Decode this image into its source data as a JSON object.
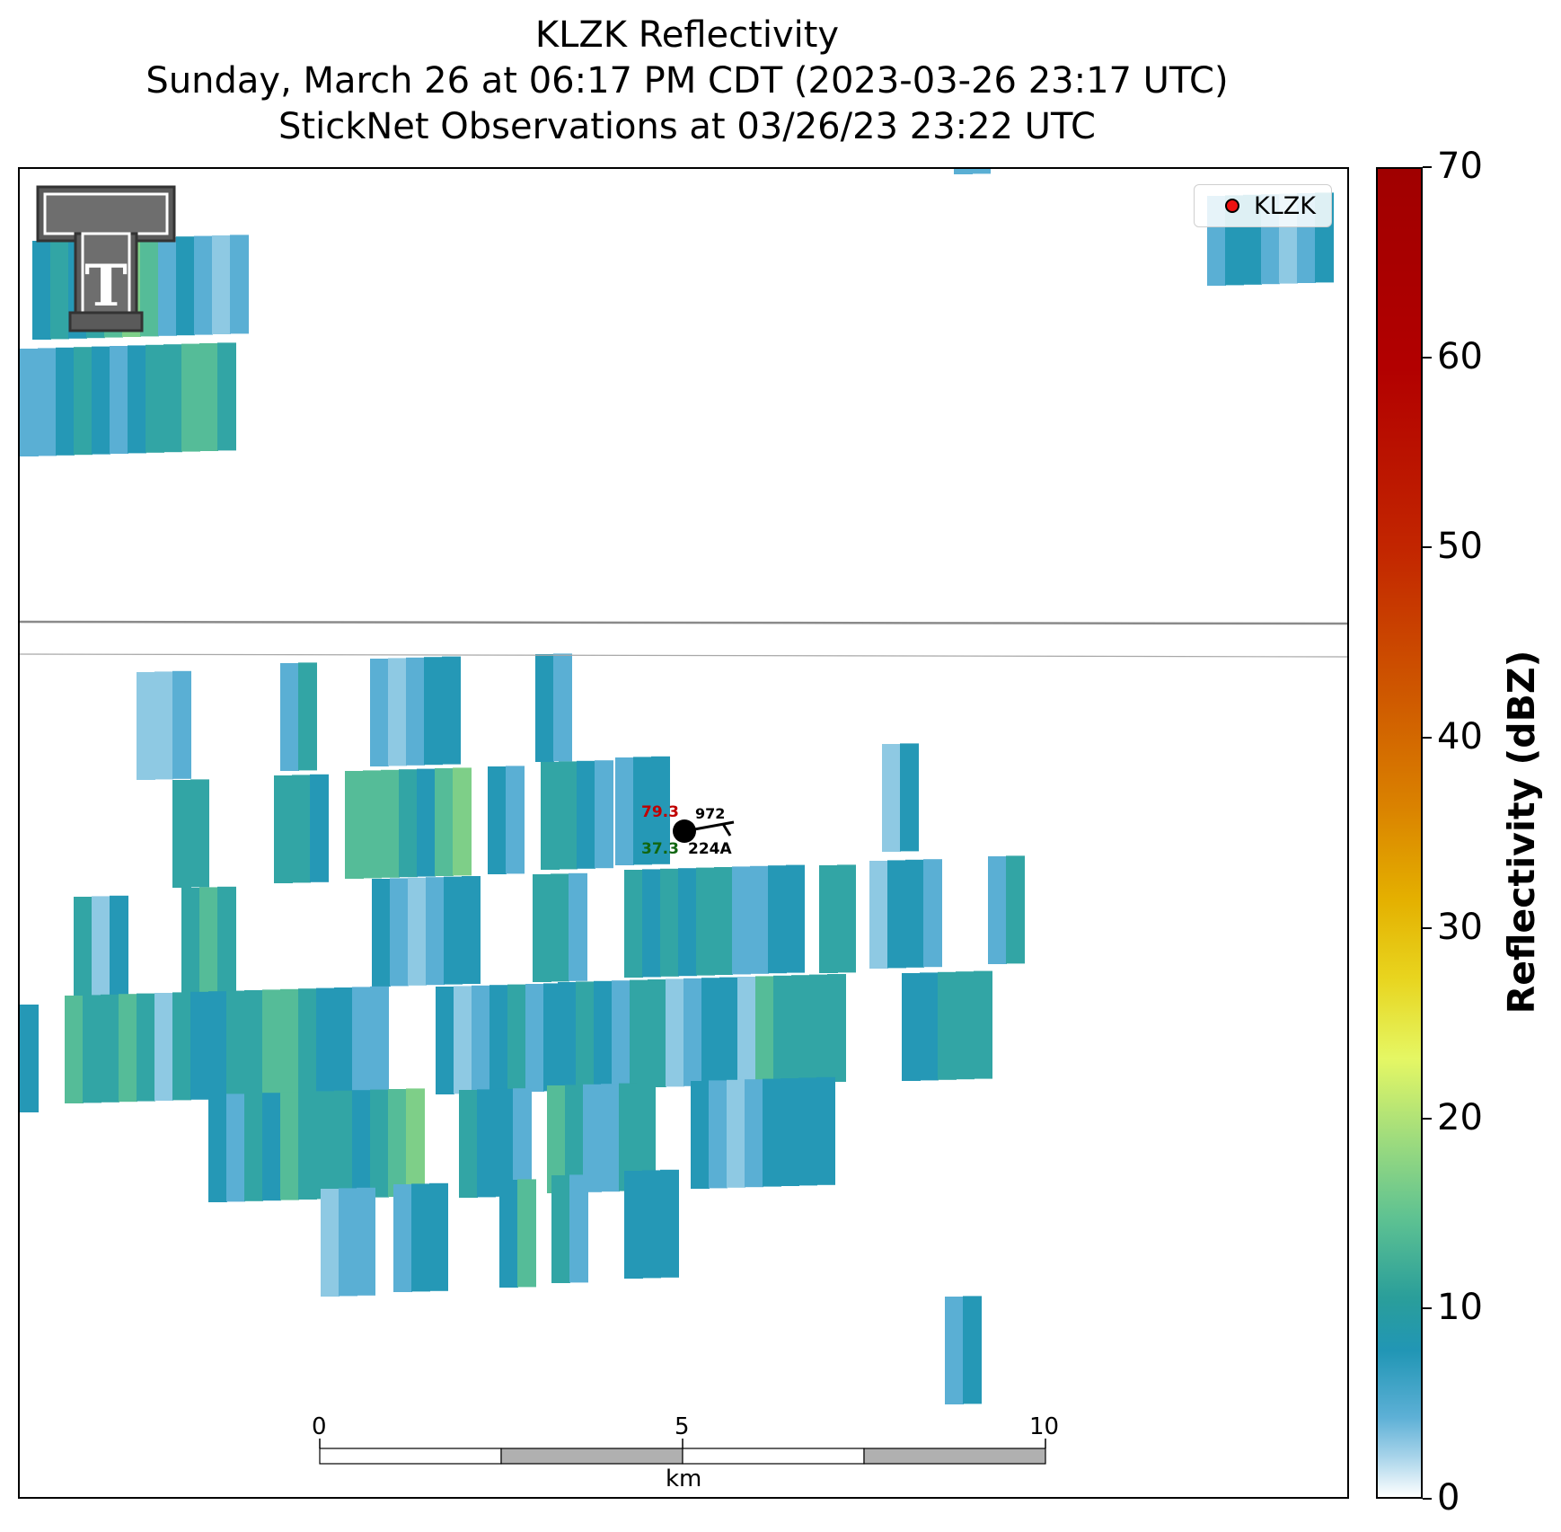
{
  "title": {
    "line1": "KLZK Reflectivity",
    "line2": "Sunday, March 26 at 06:17 PM CDT (2023-03-26 23:17 UTC)",
    "line3": "StickNet Observations at 03/26/23 23:22 UTC"
  },
  "legend": {
    "label": "KLZK",
    "marker_color": "#ee1111"
  },
  "colorbar": {
    "title": "Reflectivity (dBZ)",
    "ticks": [
      "0",
      "10",
      "20",
      "30",
      "40",
      "50",
      "60",
      "70"
    ],
    "range": [
      0,
      70
    ]
  },
  "scale_bar": {
    "labels": [
      "0",
      "5",
      "10"
    ],
    "unit": "km"
  },
  "station": {
    "temperature": "79.3",
    "dewpoint": "37.3",
    "pressure": "972",
    "id": "224A",
    "temperature_color": "#c00000",
    "dewpoint_color": "#116611"
  },
  "logo": {
    "name": "texas-tech-double-t-logo",
    "text": "T"
  },
  "colors": {
    "light_blue": "#8ec9e3",
    "mid_blue": "#5aafd4",
    "teal_blue": "#2598b6",
    "teal": "#32a5a5",
    "green_teal": "#55bc98",
    "light_green": "#7ecf88"
  }
}
